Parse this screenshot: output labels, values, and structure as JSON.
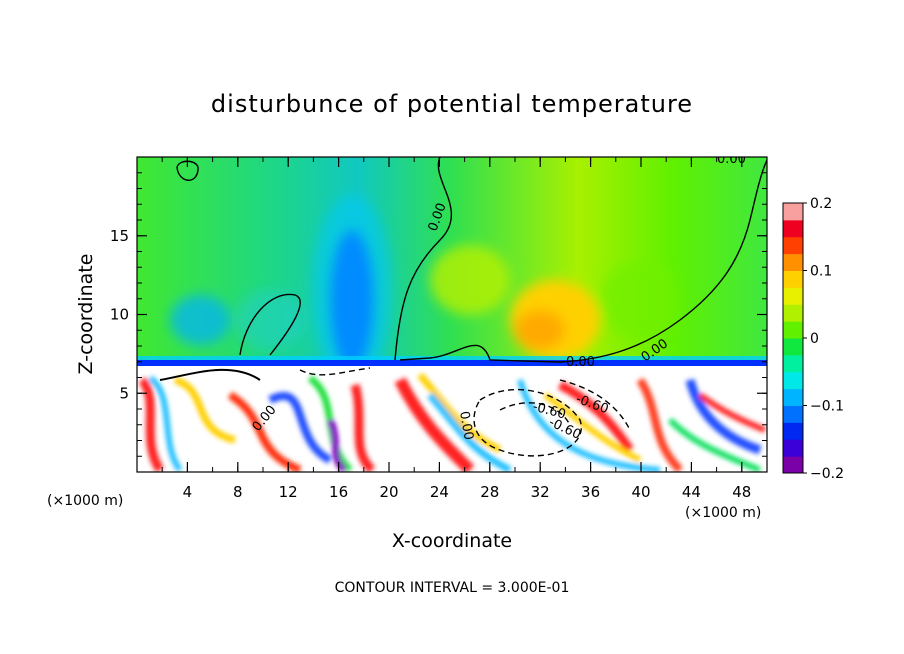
{
  "chart_data": {
    "type": "heatmap",
    "title": "disturbunce of potential temperature",
    "xlabel": "X-coordinate",
    "ylabel": "Z-coordinate",
    "x_unit": "(×1000 m)",
    "x_unit_right": "(×1000 m)",
    "footer": "CONTOUR INTERVAL = 3.000E-01",
    "xlim": [
      0,
      50
    ],
    "ylim": [
      0,
      20
    ],
    "x_ticks": [
      4,
      8,
      12,
      16,
      20,
      24,
      28,
      32,
      36,
      40,
      44,
      48
    ],
    "x_tick_labels": [
      "4",
      "8",
      "12",
      "16",
      "20",
      "24",
      "28",
      "32",
      "36",
      "40",
      "44",
      "48"
    ],
    "y_ticks": [
      5,
      10,
      15
    ],
    "y_tick_labels": [
      "5",
      "10",
      "15"
    ],
    "colorbar": {
      "range": [
        -0.2,
        0.2
      ],
      "ticks": [
        0.2,
        0.1,
        0,
        -0.1,
        -0.2
      ],
      "tick_labels": [
        "0.2",
        "0.1",
        "0",
        "−0.1",
        "−0.2"
      ],
      "colors": [
        "#7a00a8",
        "#3b00d8",
        "#0028f0",
        "#0070ff",
        "#00b4ff",
        "#00e8e8",
        "#00f0a0",
        "#10e840",
        "#60f000",
        "#b0f000",
        "#e8f000",
        "#ffd000",
        "#ff9000",
        "#ff4000",
        "#f00020",
        "#f8a0a0"
      ]
    },
    "contour_labels": [
      "0.00",
      "0.00",
      "0.00",
      "0.00",
      "0.00",
      "-0.60",
      "-0.60",
      "-0.60",
      "0.00"
    ]
  }
}
